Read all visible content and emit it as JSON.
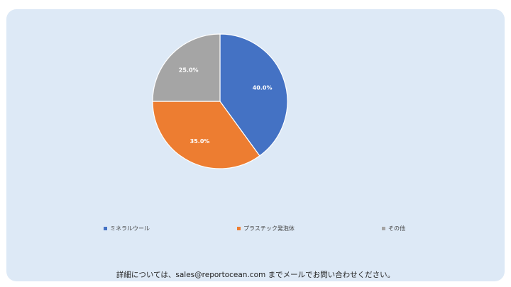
{
  "chart_data": {
    "type": "pie",
    "title": "",
    "start_angle_deg": 0,
    "direction": "clockwise",
    "legend_position": "bottom",
    "slices": [
      {
        "name": "ミネラルウール",
        "value": 40.0,
        "label": "40.0%",
        "color": "#4472c4"
      },
      {
        "name": "プラスチック発泡体",
        "value": 35.0,
        "label": "35.0%",
        "color": "#ed7d31"
      },
      {
        "name": "その他",
        "value": 25.0,
        "label": "25.0%",
        "color": "#a5a5a5"
      }
    ]
  },
  "footer": {
    "text": "詳細については、sales@reportocean.com までメールでお問い合わせください。"
  }
}
